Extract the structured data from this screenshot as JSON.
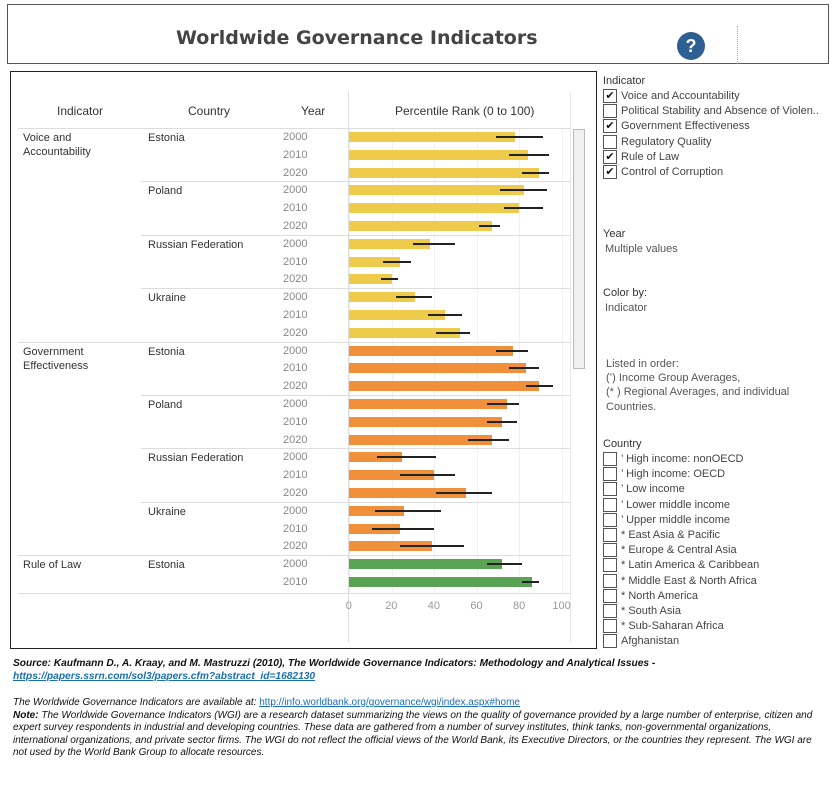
{
  "header": {
    "title": "Worldwide Governance Indicators",
    "help_icon": "?"
  },
  "table": {
    "col_indicator": "Indicator",
    "col_country": "Country",
    "col_year": "Year",
    "col_value": "Percentile Rank (0 to 100)"
  },
  "colors": {
    "Voice and Accountability": "#eecb4b",
    "Government Effectiveness": "#f0903a",
    "Rule of Law": "#5aa355"
  },
  "chart_data": {
    "type": "bar",
    "xlabel": "Percentile Rank (0 to 100)",
    "xlim": [
      0,
      100
    ],
    "ticks": [
      "0",
      "20",
      "40",
      "60",
      "80",
      "100"
    ],
    "groups": [
      {
        "indicator": "Voice and Accountability",
        "country": "Estonia",
        "rows": [
          {
            "year": "2000",
            "value": 78,
            "low": 69,
            "high": 91
          },
          {
            "year": "2010",
            "value": 84,
            "low": 75,
            "high": 94
          },
          {
            "year": "2020",
            "value": 89,
            "low": 81,
            "high": 94
          }
        ]
      },
      {
        "indicator": "",
        "country": "Poland",
        "rows": [
          {
            "year": "2000",
            "value": 82,
            "low": 71,
            "high": 93
          },
          {
            "year": "2010",
            "value": 80,
            "low": 73,
            "high": 91
          },
          {
            "year": "2020",
            "value": 67,
            "low": 61,
            "high": 71
          }
        ]
      },
      {
        "indicator": "",
        "country": "Russian Federation",
        "rows": [
          {
            "year": "2000",
            "value": 38,
            "low": 30,
            "high": 50
          },
          {
            "year": "2010",
            "value": 24,
            "low": 16,
            "high": 29
          },
          {
            "year": "2020",
            "value": 20,
            "low": 15,
            "high": 23
          }
        ]
      },
      {
        "indicator": "",
        "country": "Ukraine",
        "rows": [
          {
            "year": "2000",
            "value": 31,
            "low": 22,
            "high": 39
          },
          {
            "year": "2010",
            "value": 45,
            "low": 37,
            "high": 53
          },
          {
            "year": "2020",
            "value": 52,
            "low": 41,
            "high": 57
          }
        ]
      },
      {
        "indicator": "Government Effectiveness",
        "country": "Estonia",
        "rows": [
          {
            "year": "2000",
            "value": 77,
            "low": 69,
            "high": 84
          },
          {
            "year": "2010",
            "value": 83,
            "low": 75,
            "high": 89
          },
          {
            "year": "2020",
            "value": 89,
            "low": 83,
            "high": 96
          }
        ]
      },
      {
        "indicator": "",
        "country": "Poland",
        "rows": [
          {
            "year": "2000",
            "value": 74,
            "low": 65,
            "high": 80
          },
          {
            "year": "2010",
            "value": 72,
            "low": 65,
            "high": 79
          },
          {
            "year": "2020",
            "value": 67,
            "low": 56,
            "high": 75
          }
        ]
      },
      {
        "indicator": "",
        "country": "Russian Federation",
        "rows": [
          {
            "year": "2000",
            "value": 25,
            "low": 13,
            "high": 41
          },
          {
            "year": "2010",
            "value": 40,
            "low": 24,
            "high": 50
          },
          {
            "year": "2020",
            "value": 55,
            "low": 41,
            "high": 67
          }
        ]
      },
      {
        "indicator": "",
        "country": "Ukraine",
        "rows": [
          {
            "year": "2000",
            "value": 26,
            "low": 12,
            "high": 43
          },
          {
            "year": "2010",
            "value": 24,
            "low": 11,
            "high": 40
          },
          {
            "year": "2020",
            "value": 39,
            "low": 24,
            "high": 54
          }
        ]
      },
      {
        "indicator": "Rule of Law",
        "country": "Estonia",
        "rows": [
          {
            "year": "2000",
            "value": 72,
            "low": 65,
            "high": 81
          },
          {
            "year": "2010",
            "value": 86,
            "low": 81,
            "high": 89
          }
        ]
      }
    ]
  },
  "indicator_filter": {
    "title": "Indicator",
    "items": [
      {
        "label": "Voice and Accountability",
        "checked": "✔"
      },
      {
        "label": "Political Stability and Absence of Violen..",
        "checked": ""
      },
      {
        "label": "Government Effectiveness",
        "checked": "✔"
      },
      {
        "label": "Regulatory Quality",
        "checked": ""
      },
      {
        "label": "Rule of Law",
        "checked": "✔"
      },
      {
        "label": "Control of Corruption",
        "checked": "✔"
      }
    ]
  },
  "year_filter": {
    "title": "Year",
    "value": "Multiple values"
  },
  "color_by": {
    "title": "Color by:",
    "value": "Indicator"
  },
  "order_note": {
    "line1": "Listed in order:",
    "line2": "(’) Income Group Averages,",
    "line3": "(* ) Regional Averages, and individual",
    "line4": "Countries."
  },
  "country_filter": {
    "title": "Country",
    "items": [
      {
        "label": "’ High income: nonOECD",
        "checked": ""
      },
      {
        "label": "’ High income: OECD",
        "checked": ""
      },
      {
        "label": "’ Low income",
        "checked": ""
      },
      {
        "label": "’ Lower middle income",
        "checked": ""
      },
      {
        "label": "’ Upper middle income",
        "checked": ""
      },
      {
        "label": "* East Asia & Pacific",
        "checked": ""
      },
      {
        "label": "* Europe & Central Asia",
        "checked": ""
      },
      {
        "label": "* Latin America & Caribbean",
        "checked": ""
      },
      {
        "label": "* Middle East & North Africa",
        "checked": ""
      },
      {
        "label": "* North America",
        "checked": ""
      },
      {
        "label": "* South Asia",
        "checked": ""
      },
      {
        "label": "* Sub-Saharan Africa",
        "checked": ""
      },
      {
        "label": "Afghanistan",
        "checked": ""
      }
    ]
  },
  "footer": {
    "source_text": "Source: Kaufmann D., A. Kraay, and M. Mastruzzi (2010), The Worldwide Governance Indicators: Methodology and Analytical Issues - ",
    "source_link": "https://papers.ssrn.com/sol3/papers.cfm?abstract_id=1682130",
    "avail_text": "The Worldwide Governance Indicators are available at: ",
    "avail_link": "http://info.worldbank.org/governance/wgi/index.aspx#home",
    "note_label": "Note:",
    "note_text": " The Worldwide Governance Indicators (WGI) are a research dataset summarizing the views on the quality of governance provided by a large number of enterprise, citizen and expert survey respondents in industrial and developing countries. These data are gathered from a number of survey institutes, think tanks, non-governmental organizations, international organizations, and private sector firms. The WGI do not reflect the official views of the World Bank, its Executive Directors, or the countries they represent. The WGI are not used by the World Bank Group to allocate resources."
  }
}
